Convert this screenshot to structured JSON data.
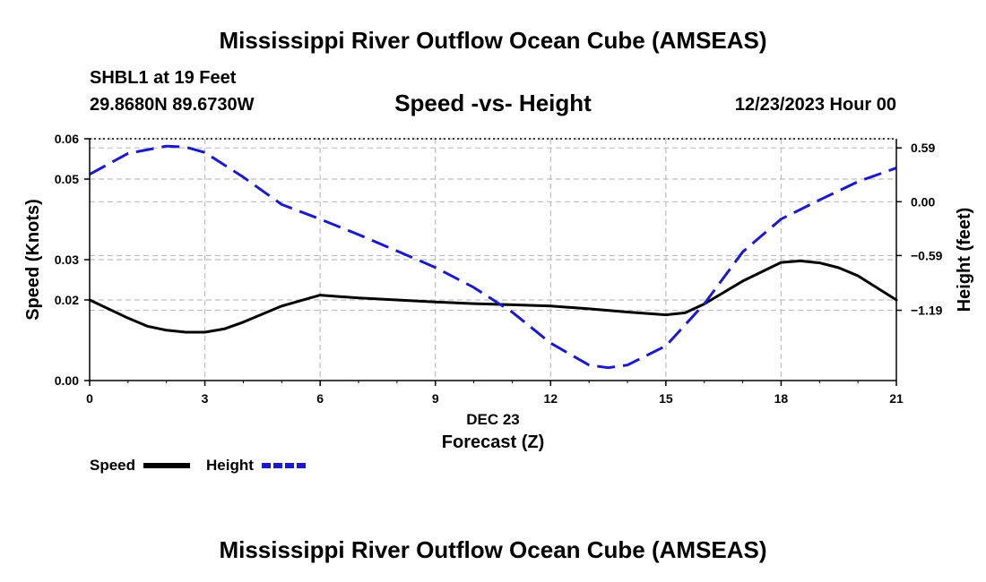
{
  "header": {
    "title": "Mississippi River Outflow Ocean Cube (AMSEAS)",
    "station": "SHBL1 at 19 Feet",
    "coords": "29.8680N  89.6730W",
    "datetime": "12/23/2023 Hour 00"
  },
  "footer": {
    "title": "Mississippi River Outflow Ocean Cube (AMSEAS)"
  },
  "chart_data": {
    "type": "line",
    "title": "Speed -vs- Height",
    "xlabel": "Forecast (Z)",
    "xdate": "DEC 23",
    "ylabel_left": "Speed (Knots)",
    "ylabel_right": "Height (feet)",
    "xlim": [
      0,
      21
    ],
    "x_ticks": [
      0,
      3,
      6,
      9,
      12,
      15,
      18,
      21
    ],
    "x_tick_labels": [
      "0",
      "3",
      "6",
      "9",
      "12",
      "15",
      "18",
      "21"
    ],
    "ylim_left": [
      0,
      0.06
    ],
    "y_left_ticks": [
      0,
      0.02,
      0.03,
      0.05,
      0.06
    ],
    "y_left_tick_labels": [
      "0.00",
      "0.02",
      "0.03",
      "0.05",
      "0.06"
    ],
    "ylim_right": [
      -1.96,
      0.69
    ],
    "y_right_ticks": [
      0.59,
      0.0,
      -0.59,
      -1.19
    ],
    "y_right_tick_labels": [
      "0.59",
      "0.00",
      "−0.59",
      "−1.19"
    ],
    "grid": true,
    "legend": "bottom-left",
    "colors": {
      "speed": "#000000",
      "height": "#1a1acc",
      "grid": "#bdbdbd"
    },
    "series": [
      {
        "name": "Speed",
        "axis": "left",
        "x": [
          0,
          1,
          1.5,
          2,
          2.5,
          3,
          3.5,
          4,
          5,
          6,
          7,
          8,
          9,
          10,
          11,
          12,
          13,
          14,
          15,
          15.5,
          16,
          17,
          18,
          18.5,
          19,
          19.5,
          20,
          21
        ],
        "values": [
          0.02,
          0.0155,
          0.0135,
          0.0125,
          0.012,
          0.012,
          0.0128,
          0.0145,
          0.0185,
          0.0212,
          0.0205,
          0.02,
          0.0195,
          0.0191,
          0.0188,
          0.0185,
          0.0178,
          0.017,
          0.0163,
          0.0168,
          0.019,
          0.0247,
          0.0293,
          0.0297,
          0.0292,
          0.028,
          0.026,
          0.02
        ]
      },
      {
        "name": "Height",
        "axis": "right",
        "x": [
          0,
          1,
          2,
          2.5,
          3,
          4,
          5,
          6,
          7,
          8,
          9,
          10,
          11,
          12,
          13,
          13.5,
          14,
          15,
          16,
          17,
          18,
          19,
          20,
          21
        ],
        "values": [
          0.3,
          0.53,
          0.61,
          0.6,
          0.54,
          0.27,
          -0.03,
          -0.19,
          -0.36,
          -0.54,
          -0.72,
          -0.94,
          -1.21,
          -1.55,
          -1.79,
          -1.82,
          -1.79,
          -1.58,
          -1.12,
          -0.55,
          -0.19,
          0.02,
          0.22,
          0.37
        ]
      }
    ]
  }
}
